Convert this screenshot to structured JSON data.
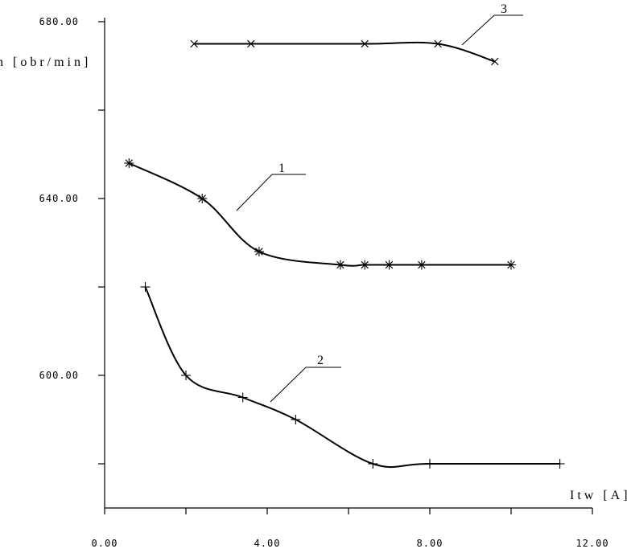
{
  "chart_data": {
    "type": "line",
    "title": "",
    "xlabel": "Itw  [A]",
    "ylabel": "n [obr/min]",
    "xlim": [
      0,
      12
    ],
    "ylim": [
      570,
      682
    ],
    "x_ticks_major": [
      0,
      4,
      8,
      12
    ],
    "x_tick_labels": [
      "0.00",
      "4.00",
      "8.00",
      "12.00"
    ],
    "x_ticks_minor": [
      2,
      6,
      10
    ],
    "y_ticks_major": [
      600,
      640,
      680
    ],
    "y_tick_labels": [
      "600.00",
      "640.00",
      "680.00"
    ],
    "y_ticks_minor": [
      580,
      620,
      660
    ],
    "grid": false,
    "legend": "none",
    "series": [
      {
        "name": "1",
        "marker": "asterisk",
        "x": [
          0.6,
          2.4,
          3.8,
          5.8,
          6.4,
          7.0,
          7.8,
          10.0
        ],
        "y": [
          648,
          640,
          628,
          625,
          625,
          625,
          625,
          625
        ]
      },
      {
        "name": "2",
        "marker": "plus",
        "x": [
          1.0,
          2.0,
          3.4,
          4.7,
          6.6,
          8.0,
          11.2
        ],
        "y": [
          620,
          600,
          595,
          590,
          580,
          580,
          580
        ]
      },
      {
        "name": "3",
        "marker": "x",
        "x": [
          2.2,
          3.6,
          6.4,
          8.2,
          9.6
        ],
        "y": [
          675,
          675,
          675,
          675,
          671
        ]
      }
    ]
  }
}
